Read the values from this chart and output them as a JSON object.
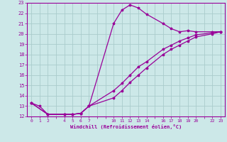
{
  "xlabel": "Windchill (Refroidissement éolien,°C)",
  "bg_color": "#cce8e8",
  "grid_color": "#aacccc",
  "line_color": "#990099",
  "xlim": [
    -0.5,
    23.5
  ],
  "ylim": [
    12,
    23
  ],
  "yticks": [
    12,
    13,
    14,
    15,
    16,
    17,
    18,
    19,
    20,
    21,
    22,
    23
  ],
  "xticks_all": [
    0,
    1,
    2,
    3,
    4,
    5,
    6,
    7,
    8,
    9,
    10,
    11,
    12,
    13,
    14,
    15,
    16,
    17,
    18,
    19,
    20,
    21,
    22,
    23
  ],
  "xtick_labels_pos": [
    0,
    1,
    2,
    4,
    5,
    6,
    7,
    10,
    11,
    12,
    13,
    14,
    16,
    17,
    18,
    19,
    20,
    22,
    23
  ],
  "line1_x": [
    0,
    1,
    2,
    4,
    5,
    6,
    7,
    10,
    11,
    12,
    13,
    14,
    16,
    17,
    18,
    19,
    20,
    22,
    23
  ],
  "line1_y": [
    13.3,
    13.0,
    12.2,
    12.2,
    12.2,
    12.3,
    13.0,
    21.0,
    22.3,
    22.8,
    22.5,
    21.9,
    21.0,
    20.5,
    20.2,
    20.3,
    20.2,
    20.2,
    20.2
  ],
  "line2_x": [
    0,
    2,
    4,
    5,
    6,
    7,
    10,
    11,
    12,
    13,
    14,
    16,
    17,
    18,
    19,
    20,
    22,
    23
  ],
  "line2_y": [
    13.3,
    12.2,
    12.2,
    12.2,
    12.3,
    13.0,
    14.5,
    15.2,
    16.0,
    16.8,
    17.3,
    18.5,
    18.9,
    19.3,
    19.6,
    19.9,
    20.1,
    20.2
  ],
  "line3_x": [
    0,
    2,
    4,
    5,
    6,
    7,
    10,
    11,
    12,
    13,
    14,
    16,
    17,
    18,
    19,
    20,
    22,
    23
  ],
  "line3_y": [
    13.3,
    12.2,
    12.2,
    12.2,
    12.3,
    13.0,
    13.8,
    14.5,
    15.3,
    16.0,
    16.7,
    18.0,
    18.5,
    18.9,
    19.3,
    19.7,
    20.0,
    20.2
  ]
}
